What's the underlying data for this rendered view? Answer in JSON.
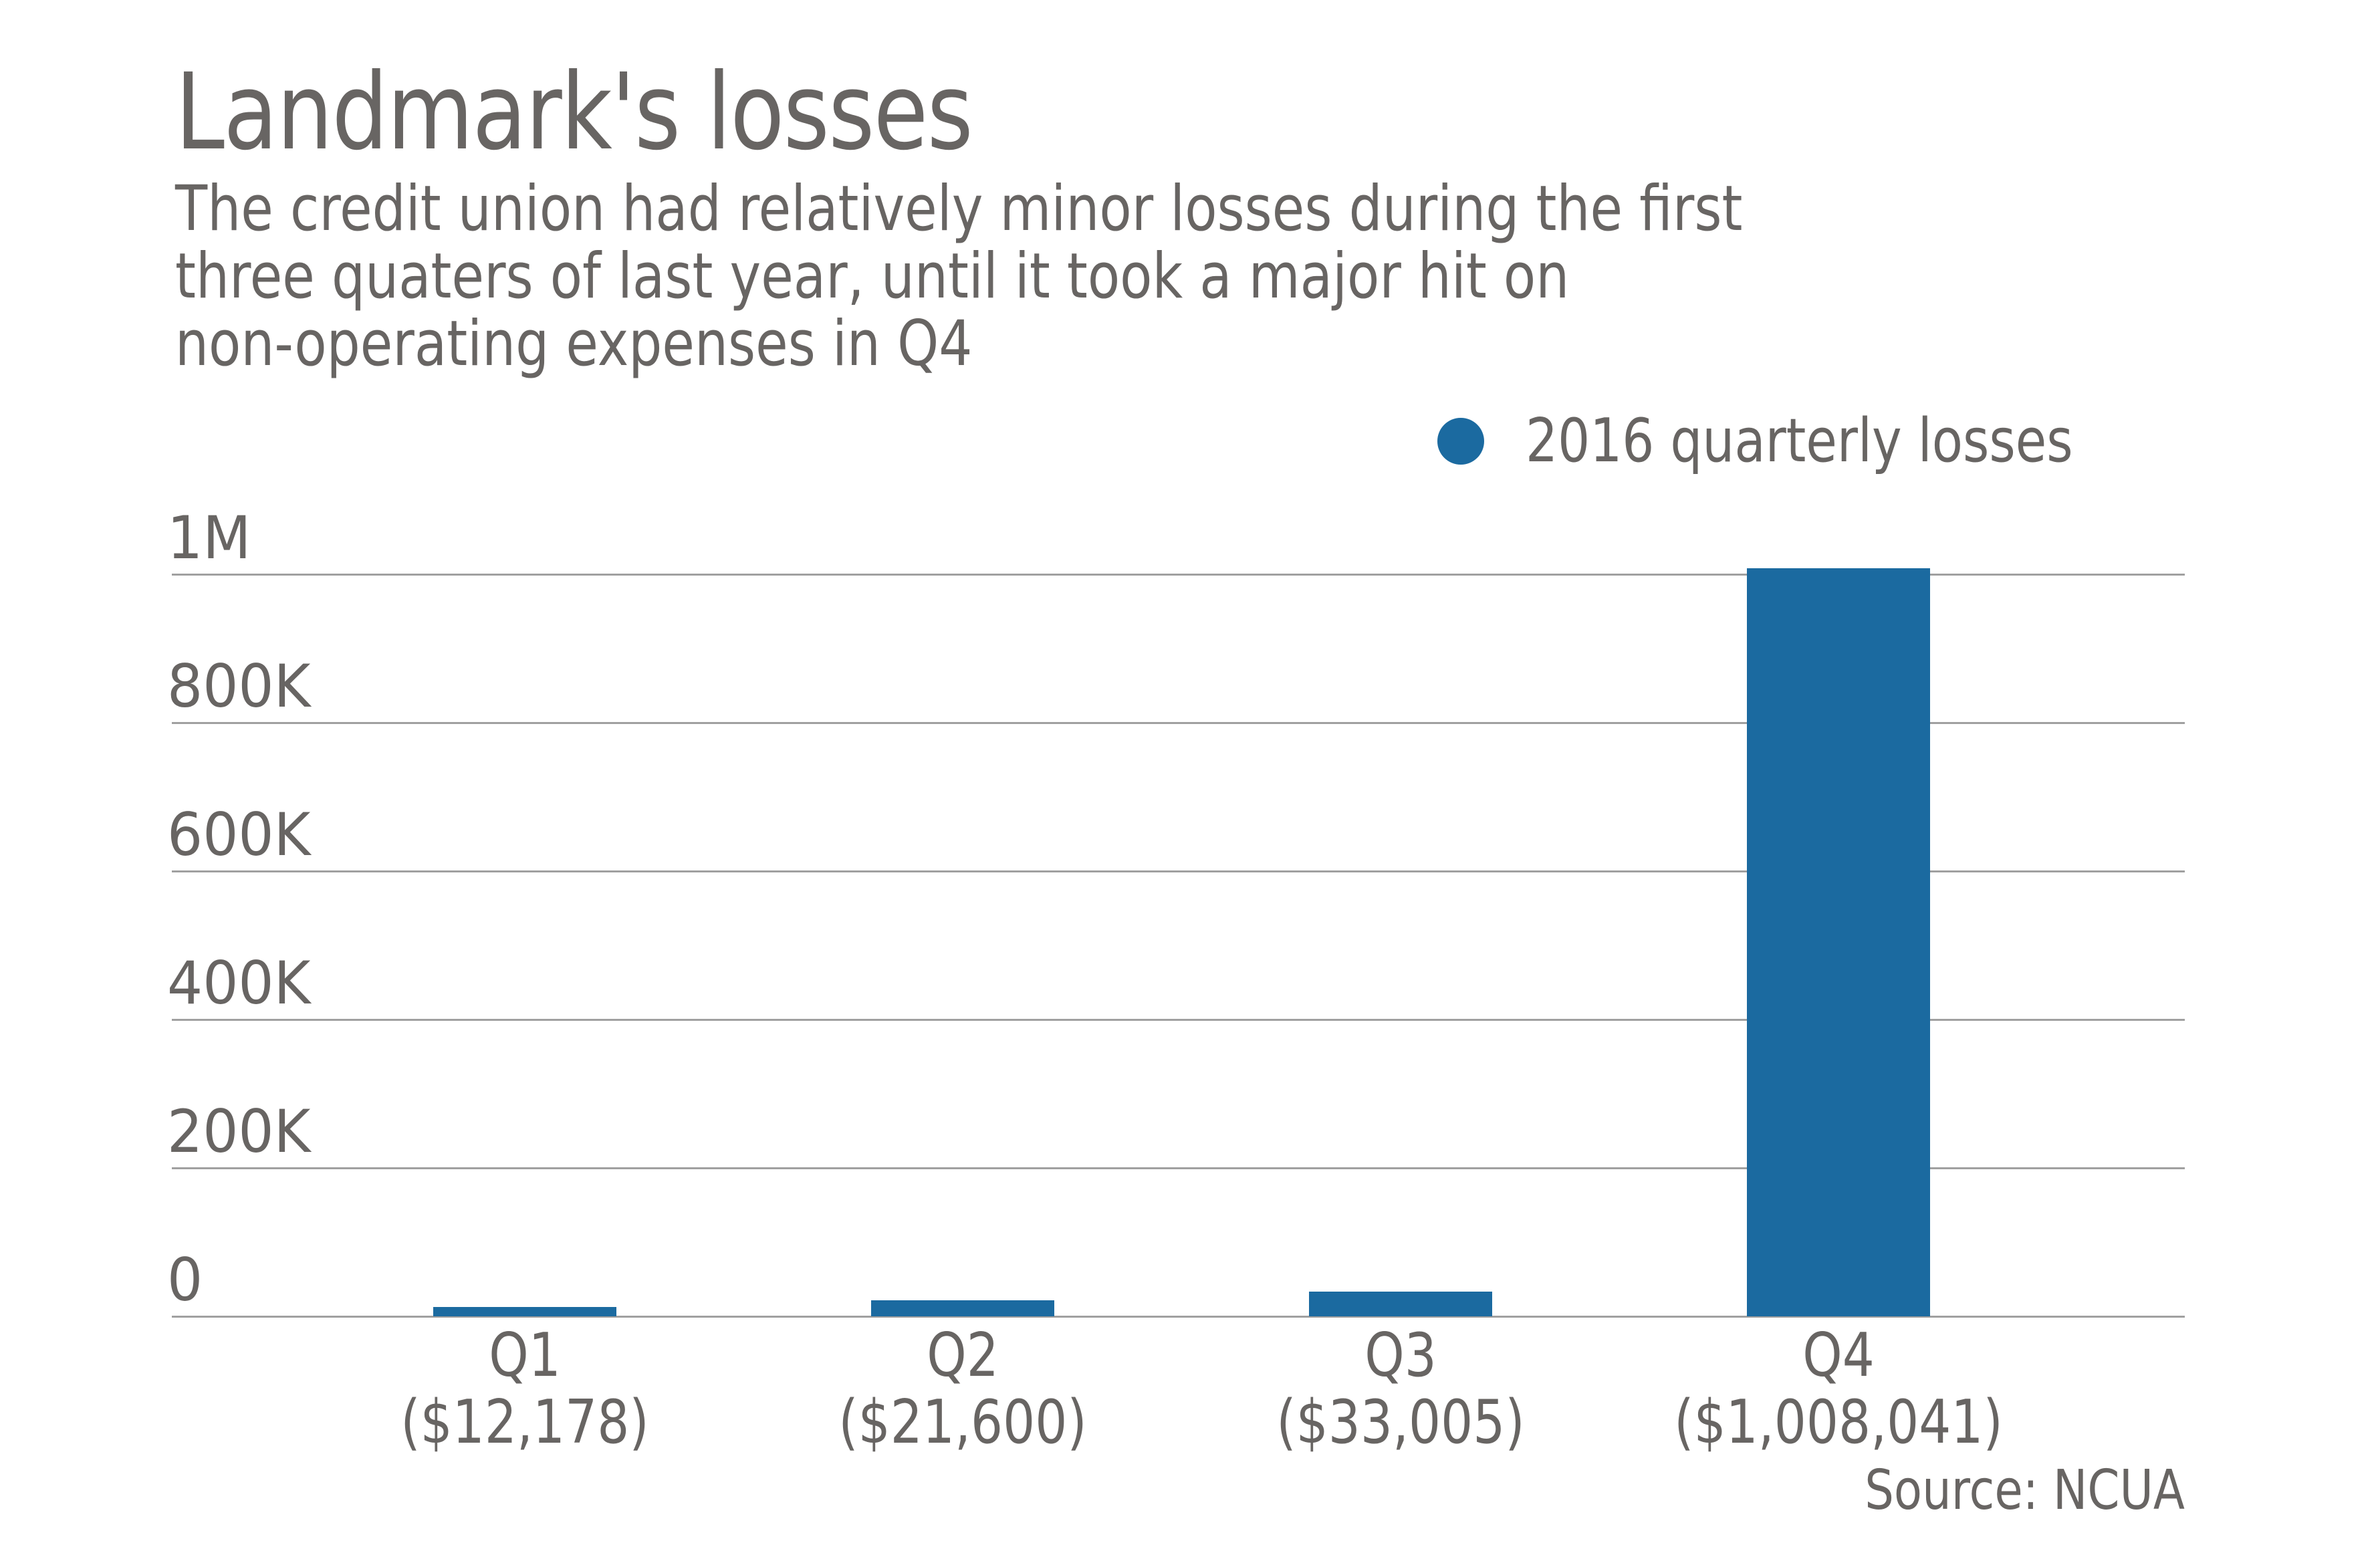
{
  "header": {
    "title": "Landmark's losses",
    "subtitle_lines": [
      "The credit union had relatively minor losses during the first",
      "three quaters of last year, until it took a major hit on",
      "non-operating expenses in Q4"
    ]
  },
  "legend": {
    "label": "2016 quarterly losses",
    "color": "#1b6aa0"
  },
  "y_axis": {
    "ticks": [
      "0",
      "200K",
      "400K",
      "600K",
      "800K",
      "1M"
    ]
  },
  "x_axis": {
    "categories": [
      {
        "label": "Q1",
        "value_label": "($12,178)"
      },
      {
        "label": "Q2",
        "value_label": "($21,600)"
      },
      {
        "label": "Q3",
        "value_label": "($33,005)"
      },
      {
        "label": "Q4",
        "value_label": "($1,008,041)"
      }
    ]
  },
  "footer": {
    "source": "Source: NCUA"
  },
  "colors": {
    "bar": "#1b6aa0",
    "text": "#686563",
    "gridline": "#a0a0a0"
  },
  "chart_data": {
    "type": "bar",
    "title": "Landmark's losses",
    "subtitle": "The credit union had relatively minor losses during the first three quaters of last year, until it took a major hit on non-operating expenses in Q4",
    "categories": [
      "Q1",
      "Q2",
      "Q3",
      "Q4"
    ],
    "category_sublabels": [
      "($12,178)",
      "($21,600)",
      "($33,005)",
      "($1,008,041)"
    ],
    "series": [
      {
        "name": "2016 quarterly losses",
        "values": [
          12178,
          21600,
          33005,
          1008041
        ],
        "color": "#1b6aa0"
      }
    ],
    "xlabel": "",
    "ylabel": "",
    "ylim": [
      0,
      1000000
    ],
    "yticks": [
      0,
      200000,
      400000,
      600000,
      800000,
      1000000
    ],
    "ytick_labels": [
      "0",
      "200K",
      "400K",
      "600K",
      "800K",
      "1M"
    ],
    "grid": true,
    "legend_position": "top-right",
    "source": "Source: NCUA"
  }
}
